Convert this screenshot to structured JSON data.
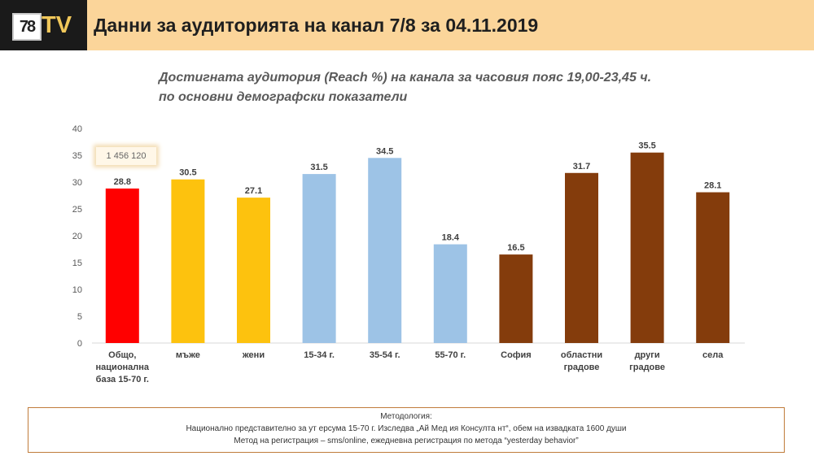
{
  "header": {
    "logo_num": "78",
    "logo_tv": "TV",
    "title": "Данни за аудиторията на канал 7/8 за 04.11.2019"
  },
  "subtitle": {
    "line1": "Достигната аудитория (Reach %) на канала за часовия пояс 19,00-23,45 ч.",
    "line2": "по основни демографски показатели"
  },
  "badge": {
    "text": "1 456 120"
  },
  "colors": {
    "red": "#ff0000",
    "yellow": "#fdc20e",
    "blue": "#9dc3e6",
    "brown": "#843c0c",
    "header_bg": "#fbd59a",
    "logo_gold": "#f0c75a"
  },
  "chart_data": {
    "type": "bar",
    "categories": [
      [
        "Общо,",
        "национална",
        "база 15-70 г."
      ],
      [
        "мъже"
      ],
      [
        "жени"
      ],
      [
        "15-34 г."
      ],
      [
        "35-54 г."
      ],
      [
        "55-70 г."
      ],
      [
        "София"
      ],
      [
        "областни",
        "градове"
      ],
      [
        "други",
        "градове"
      ],
      [
        "села"
      ]
    ],
    "values": [
      28.8,
      30.5,
      27.1,
      31.5,
      34.5,
      18.4,
      16.5,
      31.7,
      35.5,
      28.1
    ],
    "value_labels": [
      "28.8",
      "30.5",
      "27.1",
      "31.5",
      "34.5",
      "18.4",
      "16.5",
      "31.7",
      "35.5",
      "28.1"
    ],
    "bar_colors": [
      "#ff0000",
      "#fdc20e",
      "#fdc20e",
      "#9dc3e6",
      "#9dc3e6",
      "#9dc3e6",
      "#843c0c",
      "#843c0c",
      "#843c0c",
      "#843c0c"
    ],
    "ylim": [
      0,
      40
    ],
    "yticks": [
      0,
      5,
      10,
      15,
      20,
      25,
      30,
      35,
      40
    ],
    "grid": false,
    "xlabel": "",
    "ylabel": ""
  },
  "methodology": {
    "line1": "Методология:",
    "line2": "Национално представително за ут ерсума 15-70 г. Изследва „Ай Мед ия Консулта нт“, обем на извадката 1600 души",
    "line3": "Метод на регистрация – sms/online, ежедневна регистрация по метода “yesterday behavior”"
  }
}
